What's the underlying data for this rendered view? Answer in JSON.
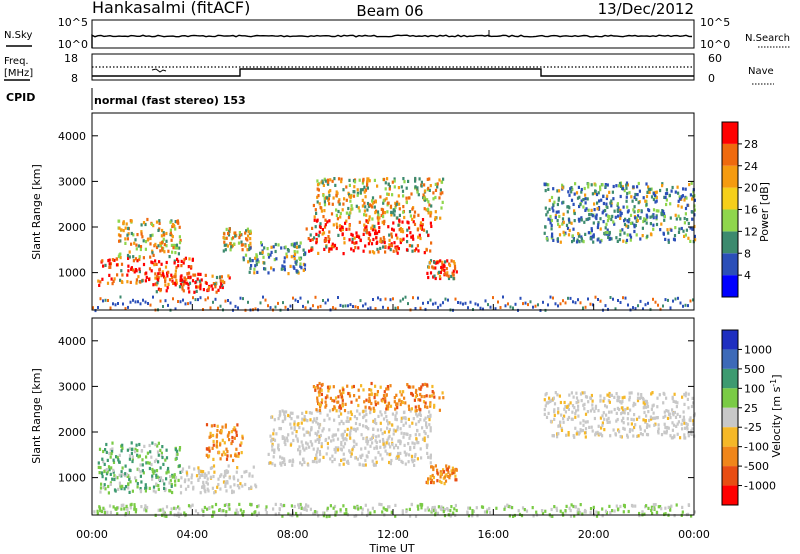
{
  "header": {
    "station": "Hankasalmi (fitACF)",
    "beam": "Beam 06",
    "date": "13/Dec/2012"
  },
  "nsky_panel": {
    "left_label": "N.Sky",
    "right_label": "N.Search",
    "left_ticks": [
      "10^5",
      "10^0"
    ],
    "right_ticks": [
      "10^5",
      "10^0"
    ]
  },
  "freq_panel": {
    "left_label_1": "Freq.",
    "left_label_2": "[MHz]",
    "right_label": "Nave",
    "left_ticks": [
      "18",
      "8"
    ],
    "right_ticks": [
      "60",
      "0"
    ]
  },
  "cpid": {
    "label": "CPID",
    "mode": "normal (fast stereo) 153"
  },
  "power_panel": {
    "ylabel": "Slant Range [km]",
    "yticks": [
      "1000",
      "2000",
      "3000",
      "4000"
    ],
    "colorbar_label": "Power [dB]",
    "colorbar_ticks": [
      "4",
      "8",
      "12",
      "16",
      "20",
      "24",
      "28"
    ],
    "colors": [
      "#0000ff",
      "#2b4fb8",
      "#3c8a6e",
      "#8fd64c",
      "#f5cf1b",
      "#f59b10",
      "#ef6a0e",
      "#ff0000"
    ]
  },
  "velocity_panel": {
    "ylabel": "Slant Range [km]",
    "yticks": [
      "1000",
      "2000",
      "3000",
      "4000"
    ],
    "colorbar_label": "Velocity [m s-1]",
    "colorbar_ticks": [
      "1000",
      "500",
      "100",
      "25",
      "-25",
      "-100",
      "-500",
      "-1000"
    ],
    "colors": [
      "#1f2fc0",
      "#3d6ab8",
      "#3d9a70",
      "#7acb45",
      "#c8c8c8",
      "#f5b828",
      "#f0861a",
      "#e84d12",
      "#ff0000"
    ]
  },
  "xaxis": {
    "label": "Time UT",
    "ticks": [
      "00:00",
      "04:00",
      "08:00",
      "12:00",
      "16:00",
      "20:00",
      "00:00"
    ]
  },
  "chart_data": {
    "type": "heatmap",
    "x_range_hours": [
      0,
      24
    ],
    "y_range_km": [
      180,
      4500
    ],
    "power_blobs": [
      {
        "t": [
          0.2,
          4.0
        ],
        "r": [
          750,
          1350
        ],
        "level": "high"
      },
      {
        "t": [
          1.0,
          3.5
        ],
        "r": [
          1350,
          2200
        ],
        "level": "mid"
      },
      {
        "t": [
          2.5,
          5.5
        ],
        "r": [
          600,
          1000
        ],
        "level": "high"
      },
      {
        "t": [
          5.2,
          6.3
        ],
        "r": [
          1500,
          2000
        ],
        "level": "mid"
      },
      {
        "t": [
          6.0,
          8.5
        ],
        "r": [
          1000,
          1700
        ],
        "level": "low"
      },
      {
        "t": [
          8.5,
          13.5
        ],
        "r": [
          1450,
          2200
        ],
        "level": "high"
      },
      {
        "t": [
          8.8,
          14.0
        ],
        "r": [
          2200,
          3100
        ],
        "level": "mid"
      },
      {
        "t": [
          13.3,
          14.5
        ],
        "r": [
          900,
          1300
        ],
        "level": "high"
      },
      {
        "t": [
          18.0,
          24.0
        ],
        "r": [
          1700,
          3000
        ],
        "level": "low"
      }
    ],
    "velocity_blobs": [
      {
        "t": [
          0.2,
          3.5
        ],
        "r": [
          700,
          1800
        ],
        "kind": "toward"
      },
      {
        "t": [
          3.5,
          6.5
        ],
        "r": [
          700,
          1300
        ],
        "kind": "ground"
      },
      {
        "t": [
          4.5,
          6.0
        ],
        "r": [
          1400,
          2200
        ],
        "kind": "away"
      },
      {
        "t": [
          7.0,
          13.5
        ],
        "r": [
          1300,
          2500
        ],
        "kind": "ground"
      },
      {
        "t": [
          8.8,
          14.0
        ],
        "r": [
          2500,
          3100
        ],
        "kind": "away"
      },
      {
        "t": [
          13.3,
          14.5
        ],
        "r": [
          900,
          1300
        ],
        "kind": "away"
      },
      {
        "t": [
          18.0,
          24.0
        ],
        "r": [
          1900,
          2900
        ],
        "kind": "ground"
      },
      {
        "t": [
          0.0,
          24.0
        ],
        "r": [
          180,
          450
        ],
        "kind": "nearrange"
      }
    ]
  }
}
